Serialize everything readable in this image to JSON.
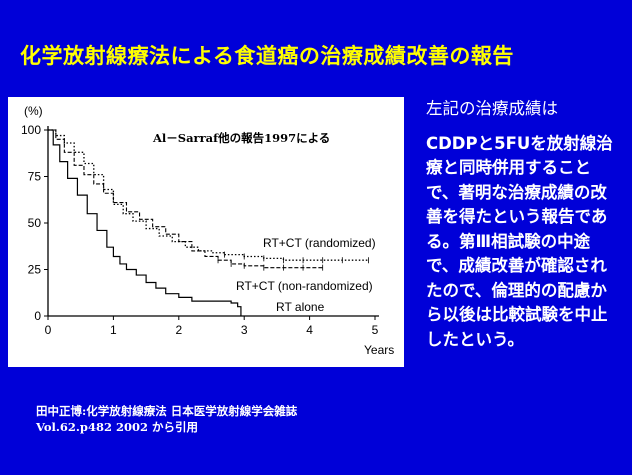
{
  "slide": {
    "title": "化学放射線療法による食道癌の治療成績改善の報告",
    "side_text": {
      "lead": "左記の治療成績は",
      "body": "CDDPと5FUを放射線治療と同時併用することで、著明な治療成績の改善を得たという報告である。第Ⅲ相試験の中途で、成績改善が確認されたので、倫理的の配慮から以後は比較試験を中止したという。"
    },
    "citation": {
      "line1": "田中正博:化学放射線療法 日本医学放射線学会雑誌",
      "line2": "Vol.62.p482 2002 から引用"
    }
  },
  "colors": {
    "background": "#0000d8",
    "title": "#ffff00",
    "text": "#ffffff"
  },
  "chart_data": {
    "type": "line",
    "annotation": "Al－Sarraf他の報告1997による",
    "ylabel": "(%)",
    "xlabel": "Years",
    "xlim": [
      0,
      5
    ],
    "ylim": [
      0,
      100
    ],
    "x_ticks": [
      0,
      1,
      2,
      3,
      4,
      5
    ],
    "y_ticks": [
      0,
      25,
      50,
      75,
      100
    ],
    "grid": false,
    "series": [
      {
        "name": "RT+CT (randomized)",
        "style": "dotted",
        "points": [
          [
            0,
            100
          ],
          [
            0.12,
            97
          ],
          [
            0.25,
            93
          ],
          [
            0.4,
            88
          ],
          [
            0.55,
            82
          ],
          [
            0.7,
            76
          ],
          [
            0.85,
            68
          ],
          [
            1.0,
            60
          ],
          [
            1.15,
            55
          ],
          [
            1.3,
            51
          ],
          [
            1.5,
            47
          ],
          [
            1.7,
            43
          ],
          [
            1.9,
            40
          ],
          [
            2.1,
            37
          ],
          [
            2.3,
            35
          ],
          [
            2.5,
            34
          ],
          [
            2.7,
            33
          ],
          [
            3.0,
            32
          ],
          [
            3.3,
            31
          ],
          [
            3.6,
            30
          ],
          [
            3.9,
            30
          ],
          [
            4.2,
            30
          ],
          [
            4.5,
            30
          ],
          [
            4.9,
            30
          ]
        ]
      },
      {
        "name": "RT+CT (non-randomized)",
        "style": "dashed-censored",
        "points": [
          [
            0,
            100
          ],
          [
            0.12,
            95
          ],
          [
            0.25,
            88
          ],
          [
            0.4,
            81
          ],
          [
            0.55,
            76
          ],
          [
            0.7,
            71
          ],
          [
            0.85,
            66
          ],
          [
            1.0,
            61
          ],
          [
            1.2,
            56
          ],
          [
            1.4,
            52
          ],
          [
            1.6,
            48
          ],
          [
            1.8,
            44
          ],
          [
            2.0,
            40
          ],
          [
            2.2,
            35
          ],
          [
            2.4,
            32
          ],
          [
            2.6,
            30
          ],
          [
            2.8,
            28
          ],
          [
            3.0,
            27
          ],
          [
            3.3,
            26
          ],
          [
            3.6,
            26
          ],
          [
            3.9,
            26
          ],
          [
            4.2,
            26
          ]
        ]
      },
      {
        "name": "RT alone",
        "style": "solid",
        "points": [
          [
            0,
            100
          ],
          [
            0.08,
            92
          ],
          [
            0.18,
            83
          ],
          [
            0.3,
            74
          ],
          [
            0.45,
            65
          ],
          [
            0.6,
            55
          ],
          [
            0.75,
            46
          ],
          [
            0.9,
            37
          ],
          [
            1.0,
            32
          ],
          [
            1.1,
            28
          ],
          [
            1.2,
            25
          ],
          [
            1.35,
            22
          ],
          [
            1.5,
            18
          ],
          [
            1.65,
            15
          ],
          [
            1.8,
            12
          ],
          [
            2.0,
            10
          ],
          [
            2.2,
            8
          ],
          [
            2.5,
            8
          ],
          [
            2.8,
            7
          ],
          [
            2.9,
            5
          ],
          [
            2.95,
            0
          ]
        ]
      }
    ]
  }
}
